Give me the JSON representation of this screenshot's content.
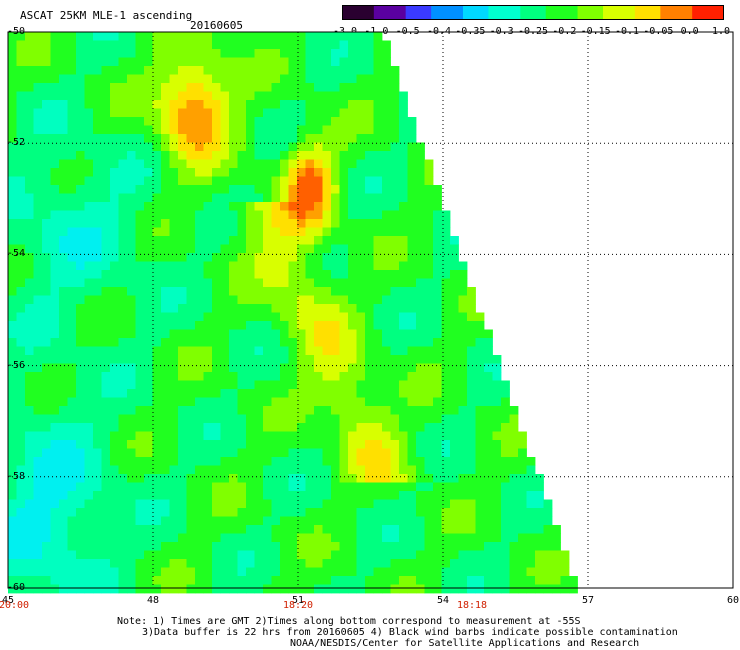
{
  "header": {
    "title": "ASCAT 25KM MLE-1 ascending",
    "date": "20160605"
  },
  "colorbar": {
    "labels": [
      "-3.0",
      "-1.0",
      "-0.5",
      "-0.4",
      "-0.35",
      "-0.3",
      "-0.25",
      "-0.2",
      "-0.15",
      "-0.1",
      "-0.05",
      "0.0",
      "1.0"
    ],
    "colors": [
      "#2a0030",
      "#5a00a0",
      "#3a3aff",
      "#0090ff",
      "#00d8ff",
      "#00ffd0",
      "#00ff80",
      "#20ff20",
      "#80ff00",
      "#d8ff00",
      "#ffe000",
      "#ff8000",
      "#ff2000"
    ]
  },
  "map": {
    "lon_range": [
      45,
      60
    ],
    "lat_range": [
      -50,
      -60
    ],
    "y_ticks": [
      "-50",
      "-52",
      "-54",
      "-56",
      "-58",
      "-60"
    ],
    "x_ticks": [
      "45",
      "48",
      "51",
      "54",
      "57",
      "60"
    ],
    "times": [
      {
        "text": "20:00",
        "lon": 45
      },
      {
        "text": "18:20",
        "lon": 51
      },
      {
        "text": "18:18",
        "lon": 54.6
      }
    ]
  },
  "notes": {
    "line1": "Note: 1) Times are GMT 2)Times along bottom correspond to measurement at -55S",
    "line2": "3)Data buffer is 22 hrs from 20160605 4) Black wind barbs indicate possible contamination",
    "line3": "NOAA/NESDIS/Center for Satellite Applications and Research"
  }
}
